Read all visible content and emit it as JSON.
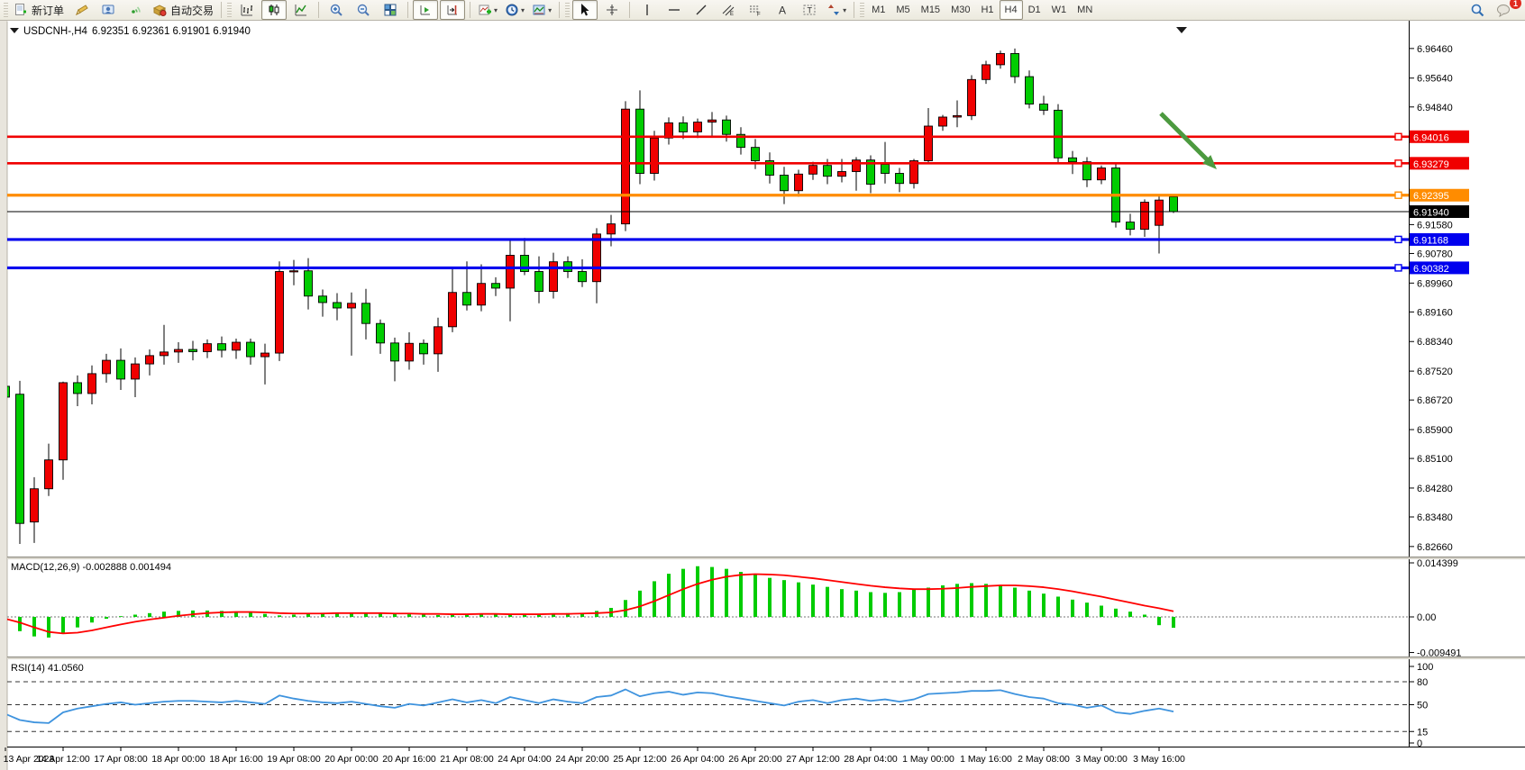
{
  "toolbar": {
    "new_order_label": "新订单",
    "autotrading_label": "自动交易",
    "channel_sub": "E",
    "fibo_sub": "F",
    "text_glyph": "A",
    "label_glyph": "T",
    "timeframes": [
      {
        "label": "M1",
        "active": false
      },
      {
        "label": "M5",
        "active": false
      },
      {
        "label": "M15",
        "active": false
      },
      {
        "label": "M30",
        "active": false
      },
      {
        "label": "H1",
        "active": false
      },
      {
        "label": "H4",
        "active": true
      },
      {
        "label": "D1",
        "active": false
      },
      {
        "label": "W1",
        "active": false
      },
      {
        "label": "MN",
        "active": false
      }
    ],
    "chat_badge": "1",
    "icon_buttons": [
      "new-order",
      "crayon",
      "community",
      "signals",
      "autotrading",
      "bar-chart",
      "candlestick-chart",
      "line-chart",
      "zoom-in",
      "zoom-out",
      "tile-windows",
      "auto-scroll",
      "chart-shift",
      "indicators",
      "periods",
      "templates",
      "cursor",
      "crosshair",
      "vertical-line",
      "horizontal-line",
      "trendline",
      "equidistant-channel",
      "fibonacci",
      "text",
      "text-label",
      "arrows",
      "search",
      "chat"
    ]
  },
  "chart": {
    "title_symbol": "USDCNH-,H4",
    "title_ohlc": "6.92351 6.92361 6.91901 6.91940"
  },
  "chart_data": {
    "type": "candlestick",
    "symbol": "USDCNH",
    "timeframe": "H4",
    "color_convention": "chinese (red=bullish, green=bearish)",
    "bull_color": "#f00000",
    "bear_color": "#00cc00",
    "ohlc_display": {
      "open": "6.92351",
      "high": "6.92361",
      "low": "6.91901",
      "close": "6.91940"
    },
    "x_labels": [
      "13 Apr 2023",
      "14 Apr 12:00",
      "17 Apr 08:00",
      "18 Apr 00:00",
      "18 Apr 16:00",
      "19 Apr 08:00",
      "20 Apr 00:00",
      "20 Apr 16:00",
      "21 Apr 08:00",
      "24 Apr 04:00",
      "24 Apr 20:00",
      "25 Apr 12:00",
      "26 Apr 04:00",
      "26 Apr 20:00",
      "27 Apr 12:00",
      "28 Apr 04:00",
      "1 May 00:00",
      "1 May 16:00",
      "2 May 08:00",
      "3 May 00:00",
      "3 May 16:00"
    ],
    "price_ticks": [
      "6.96460",
      "6.95640",
      "6.94840",
      "6.91580",
      "6.90780",
      "6.89960",
      "6.89160",
      "6.88340",
      "6.87520",
      "6.86720",
      "6.85900",
      "6.85100",
      "6.84280",
      "6.83480",
      "6.82660"
    ],
    "price_levels": [
      {
        "price": 6.94016,
        "label": "6.94016",
        "color": "#f00000",
        "width": 2.6,
        "current": false
      },
      {
        "price": 6.93279,
        "label": "6.93279",
        "color": "#f00000",
        "width": 2.6,
        "current": false
      },
      {
        "price": 6.92395,
        "label": "6.92395",
        "color": "#ff8c00",
        "width": 3.2,
        "current": false
      },
      {
        "price": 6.9194,
        "label": "6.91940",
        "color": "#000000",
        "width": 1.0,
        "current": true
      },
      {
        "price": 6.91168,
        "label": "6.91168",
        "color": "#0000ee",
        "width": 3.2,
        "current": false
      },
      {
        "price": 6.90382,
        "label": "6.90382",
        "color": "#0000ee",
        "width": 3.2,
        "current": false
      }
    ],
    "candles": [
      [
        6.871,
        6.8715,
        6.866,
        6.868
      ],
      [
        6.8688,
        6.8725,
        6.8273,
        6.833
      ],
      [
        6.8334,
        6.8458,
        6.8276,
        6.8426
      ],
      [
        6.8426,
        6.8551,
        6.8406,
        6.8506
      ],
      [
        6.8506,
        6.8723,
        6.8451,
        6.872
      ],
      [
        6.872,
        6.874,
        6.8655,
        6.869
      ],
      [
        6.869,
        6.8768,
        6.866,
        6.8745
      ],
      [
        6.8745,
        6.88,
        6.872,
        6.8782
      ],
      [
        6.8782,
        6.8815,
        6.87,
        6.873
      ],
      [
        6.873,
        6.879,
        6.868,
        6.8772
      ],
      [
        6.8772,
        6.8812,
        6.874,
        6.8795
      ],
      [
        6.8795,
        6.888,
        6.877,
        6.8805
      ],
      [
        6.8805,
        6.8832,
        6.8775,
        6.8812
      ],
      [
        6.8812,
        6.8836,
        6.8782,
        6.8806
      ],
      [
        6.8806,
        6.884,
        6.8788,
        6.8828
      ],
      [
        6.8828,
        6.8848,
        6.879,
        6.881
      ],
      [
        6.881,
        6.8842,
        6.8786,
        6.8832
      ],
      [
        6.8832,
        6.8842,
        6.877,
        6.8792
      ],
      [
        6.8792,
        6.8828,
        6.8715,
        6.8802
      ],
      [
        6.8802,
        6.9056,
        6.878,
        6.9028
      ],
      [
        6.9028,
        6.906,
        6.899,
        6.903
      ],
      [
        6.903,
        6.9065,
        6.8923,
        6.896
      ],
      [
        6.896,
        6.8978,
        6.8903,
        6.8942
      ],
      [
        6.8942,
        6.8968,
        6.8893,
        6.8927
      ],
      [
        6.8927,
        6.897,
        6.8795,
        6.894
      ],
      [
        6.894,
        6.898,
        6.884,
        6.8884
      ],
      [
        6.8884,
        6.8895,
        6.88,
        6.883
      ],
      [
        6.883,
        6.8845,
        6.8724,
        6.878
      ],
      [
        6.878,
        6.886,
        6.8756,
        6.8829
      ],
      [
        6.8829,
        6.884,
        6.877,
        6.88
      ],
      [
        6.88,
        6.89,
        6.875,
        6.8875
      ],
      [
        6.8875,
        6.904,
        6.886,
        6.897
      ],
      [
        6.897,
        6.9056,
        6.892,
        6.8935
      ],
      [
        6.8935,
        6.9048,
        6.8918,
        6.8995
      ],
      [
        6.8995,
        6.9012,
        6.896,
        6.8982
      ],
      [
        6.8982,
        6.9118,
        6.889,
        6.9073
      ],
      [
        6.9073,
        6.9121,
        6.9018,
        6.9028
      ],
      [
        6.9028,
        6.907,
        6.894,
        6.8973
      ],
      [
        6.8973,
        6.908,
        6.8953,
        6.9055
      ],
      [
        6.9055,
        6.907,
        6.901,
        6.9028
      ],
      [
        6.9028,
        6.9062,
        6.8985,
        6.9
      ],
      [
        6.9,
        6.9148,
        6.894,
        6.9132
      ],
      [
        6.9132,
        6.9185,
        6.9098,
        6.916
      ],
      [
        6.916,
        6.95,
        6.914,
        6.9478
      ],
      [
        6.9478,
        6.953,
        6.927,
        6.93
      ],
      [
        6.93,
        6.9418,
        6.928,
        6.9398
      ],
      [
        6.9398,
        6.9455,
        6.938,
        6.944
      ],
      [
        6.944,
        6.9458,
        6.9395,
        6.9415
      ],
      [
        6.9415,
        6.9452,
        6.9398,
        6.9442
      ],
      [
        6.9442,
        6.947,
        6.94,
        6.9448
      ],
      [
        6.9448,
        6.946,
        6.9388,
        6.9408
      ],
      [
        6.9408,
        6.9428,
        6.9352,
        6.9372
      ],
      [
        6.9372,
        6.9395,
        6.9312,
        6.9335
      ],
      [
        6.9335,
        6.9358,
        6.9272,
        6.9295
      ],
      [
        6.9295,
        6.9318,
        6.9215,
        6.9252
      ],
      [
        6.9252,
        6.931,
        6.9235,
        6.9298
      ],
      [
        6.9298,
        6.9332,
        6.9282,
        6.9322
      ],
      [
        6.9322,
        6.934,
        6.927,
        6.9292
      ],
      [
        6.9292,
        6.934,
        6.9275,
        6.9305
      ],
      [
        6.9305,
        6.9345,
        6.9252,
        6.9337
      ],
      [
        6.9337,
        6.935,
        6.9245,
        6.927
      ],
      [
        6.9325,
        6.9387,
        6.9272,
        6.93
      ],
      [
        6.93,
        6.9315,
        6.9248,
        6.9272
      ],
      [
        6.9272,
        6.934,
        6.9258,
        6.9335
      ],
      [
        6.9335,
        6.9481,
        6.933,
        6.9431
      ],
      [
        6.9431,
        6.9462,
        6.9418,
        6.9456
      ],
      [
        6.9456,
        6.9502,
        6.9428,
        6.946
      ],
      [
        6.946,
        6.9572,
        6.9448,
        6.956
      ],
      [
        6.956,
        6.9612,
        6.9548,
        6.9601
      ],
      [
        6.9601,
        6.964,
        6.959,
        6.9632
      ],
      [
        6.9632,
        6.9646,
        6.955,
        6.9568
      ],
      [
        6.9568,
        6.9585,
        6.948,
        6.9492
      ],
      [
        6.9492,
        6.9515,
        6.9462,
        6.9475
      ],
      [
        6.9475,
        6.9492,
        6.933,
        6.9343
      ],
      [
        6.9343,
        6.9362,
        6.9298,
        6.9332
      ],
      [
        6.9332,
        6.9345,
        6.9262,
        6.9282
      ],
      [
        6.9282,
        6.9322,
        6.927,
        6.9315
      ],
      [
        6.9315,
        6.933,
        6.915,
        6.9165
      ],
      [
        6.9165,
        6.9188,
        6.9128,
        6.9145
      ],
      [
        6.9145,
        6.9228,
        6.9124,
        6.922
      ],
      [
        6.9156,
        6.9242,
        6.9078,
        6.9226
      ],
      [
        6.92351,
        6.92361,
        6.91901,
        6.9194
      ]
    ],
    "macd": {
      "display": "MACD(12,26,9) -0.002888 0.001494",
      "label": "MACD(12,26,9)",
      "main_value": "-0.002888",
      "signal_value": "0.001494",
      "axis_labels": [
        "0.014399",
        "0.00",
        "-0.009491"
      ],
      "hist_color": "#00cc00",
      "signal_color": "#ff0000",
      "hist": [
        -8,
        -38,
        -52,
        -55,
        -42,
        -28,
        -15,
        -5,
        2,
        6,
        10,
        14,
        16,
        17,
        17,
        16,
        14,
        12,
        8,
        4,
        6,
        9,
        11,
        12,
        11,
        10,
        9,
        8,
        7,
        6,
        5,
        6,
        8,
        8,
        7,
        5,
        7,
        8,
        9,
        10,
        10,
        16,
        24,
        45,
        70,
        95,
        115,
        128,
        135,
        133,
        128,
        120,
        112,
        104,
        98,
        92,
        86,
        80,
        74,
        70,
        66,
        64,
        66,
        72,
        78,
        84,
        88,
        90,
        88,
        84,
        78,
        70,
        62,
        54,
        46,
        38,
        30,
        22,
        14,
        6,
        -22,
        -29
      ],
      "signal": [
        -5,
        -15,
        -28,
        -40,
        -44,
        -42,
        -36,
        -28,
        -20,
        -13,
        -7,
        -2,
        3,
        7,
        10,
        12,
        13,
        13,
        12,
        10,
        9,
        9,
        9,
        10,
        10,
        10,
        10,
        9,
        9,
        8,
        8,
        7,
        7,
        8,
        8,
        7,
        7,
        7,
        8,
        8,
        9,
        10,
        12,
        18,
        28,
        42,
        58,
        74,
        88,
        99,
        107,
        112,
        114,
        113,
        111,
        107,
        103,
        98,
        93,
        88,
        83,
        79,
        76,
        74,
        74,
        75,
        77,
        80,
        82,
        84,
        84,
        82,
        79,
        74,
        68,
        61,
        54,
        46,
        38,
        30,
        23,
        15
      ],
      "value_scale": 0.0001
    },
    "rsi": {
      "display": "RSI(14) 41.0560",
      "label": "RSI(14)",
      "value": "41.0560",
      "axis_labels": [
        "100",
        "80",
        "50",
        "15",
        "0"
      ],
      "level_lines": [
        80,
        50,
        15
      ],
      "line_color": "#3e93de",
      "values": [
        38,
        30,
        27,
        26,
        40,
        45,
        48,
        51,
        53,
        50,
        52,
        54,
        55,
        55,
        54,
        53,
        55,
        53,
        51,
        62,
        58,
        55,
        53,
        52,
        54,
        51,
        48,
        46,
        51,
        49,
        53,
        57,
        53,
        56,
        52,
        60,
        56,
        52,
        57,
        54,
        52,
        60,
        62,
        70,
        61,
        65,
        67,
        63,
        66,
        65,
        61,
        58,
        55,
        52,
        49,
        54,
        56,
        52,
        56,
        58,
        55,
        57,
        54,
        57,
        64,
        65,
        66,
        68,
        68,
        69,
        64,
        60,
        58,
        52,
        50,
        46,
        49,
        40,
        38,
        42,
        45,
        41
      ]
    },
    "annotation_arrow": {
      "from": [
        1288,
        126
      ],
      "to": [
        1350,
        188
      ],
      "color": "#4c9a3f"
    }
  }
}
